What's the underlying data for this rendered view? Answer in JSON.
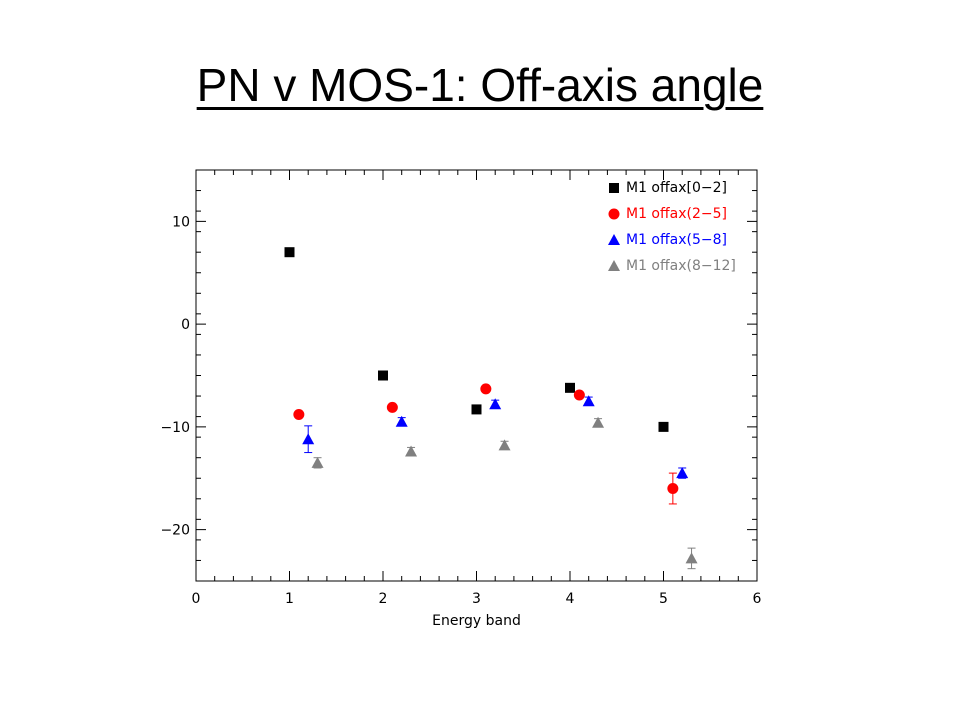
{
  "slide": {
    "title": "PN v MOS-1: Off-axis angle"
  },
  "chart_data": {
    "type": "scatter",
    "title": "",
    "xlabel": "Energy band",
    "ylabel": "",
    "xlim": [
      0,
      6
    ],
    "ylim": [
      -25,
      15
    ],
    "x_ticks": [
      0,
      1,
      2,
      3,
      4,
      5,
      6
    ],
    "y_ticks": [
      -20,
      -10,
      0,
      10
    ],
    "x_minor_step": 0.2,
    "y_minor_step": 2,
    "grid": false,
    "legend_position": "top-right",
    "series": [
      {
        "name": "M1 offax[0−2]",
        "color": "#000000",
        "marker": "square",
        "points": [
          {
            "x": 1.0,
            "y": 7.0
          },
          {
            "x": 2.0,
            "y": -5.0
          },
          {
            "x": 3.0,
            "y": -8.3
          },
          {
            "x": 4.0,
            "y": -6.2
          },
          {
            "x": 5.0,
            "y": -10.0
          }
        ]
      },
      {
        "name": "M1 offax(2−5]",
        "color": "#ff0000",
        "marker": "circle",
        "points": [
          {
            "x": 1.1,
            "y": -8.8
          },
          {
            "x": 2.1,
            "y": -8.1
          },
          {
            "x": 3.1,
            "y": -6.3
          },
          {
            "x": 4.1,
            "y": -6.9
          },
          {
            "x": 5.1,
            "y": -16.0,
            "err": 1.5
          }
        ]
      },
      {
        "name": "M1 offax(5−8]",
        "color": "#0000ff",
        "marker": "triangle",
        "points": [
          {
            "x": 1.2,
            "y": -11.2,
            "err": 1.3
          },
          {
            "x": 2.2,
            "y": -9.5,
            "err": 0.4
          },
          {
            "x": 3.2,
            "y": -7.8,
            "err": 0.4
          },
          {
            "x": 4.2,
            "y": -7.5,
            "err": 0.4
          },
          {
            "x": 5.2,
            "y": -14.5,
            "err": 0.5
          }
        ]
      },
      {
        "name": "M1 offax(8−12]",
        "color": "#808080",
        "marker": "triangle",
        "points": [
          {
            "x": 1.3,
            "y": -13.5,
            "err": 0.5
          },
          {
            "x": 2.3,
            "y": -12.4,
            "err": 0.4
          },
          {
            "x": 3.3,
            "y": -11.8,
            "err": 0.4
          },
          {
            "x": 4.3,
            "y": -9.6,
            "err": 0.4
          },
          {
            "x": 5.3,
            "y": -22.8,
            "err": 1.0
          }
        ]
      }
    ]
  }
}
